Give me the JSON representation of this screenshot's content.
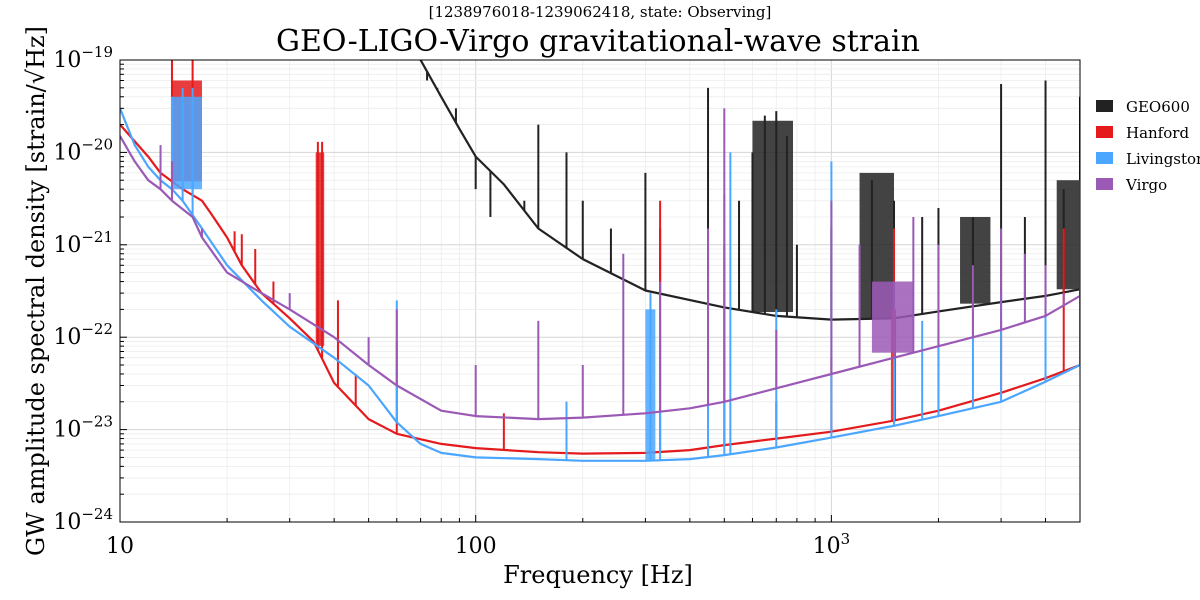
{
  "chart_data": {
    "type": "line",
    "subtitle": "[1238976018-1239062418, state: Observing]",
    "title": "GEO-LIGO-Virgo gravitational-wave strain",
    "xlabel": "Frequency [Hz]",
    "ylabel": "GW amplitude spectral density [strain/√Hz]",
    "xscale": "log",
    "yscale": "log",
    "xlim": [
      10,
      5000
    ],
    "ylim": [
      1e-24,
      1e-19
    ],
    "grid": true,
    "legend_position": "right",
    "x_tick_labels": [
      {
        "value": 10,
        "base": "10",
        "exp": ""
      },
      {
        "value": 100,
        "base": "100",
        "exp": ""
      },
      {
        "value": 1000,
        "base": "10",
        "exp": "3"
      }
    ],
    "y_tick_labels": [
      {
        "value": 1e-24,
        "base": "10",
        "exp": "−24"
      },
      {
        "value": 1e-23,
        "base": "10",
        "exp": "−23"
      },
      {
        "value": 1e-22,
        "base": "10",
        "exp": "−22"
      },
      {
        "value": 1e-21,
        "base": "10",
        "exp": "−21"
      },
      {
        "value": 1e-20,
        "base": "10",
        "exp": "−20"
      },
      {
        "value": 1e-19,
        "base": "10",
        "exp": "−19"
      }
    ],
    "series": [
      {
        "name": "GEO600",
        "color": "#222222",
        "baseline": [
          [
            70,
            1e-19
          ],
          [
            80,
            4e-20
          ],
          [
            90,
            1.8e-20
          ],
          [
            100,
            9e-21
          ],
          [
            120,
            4.5e-21
          ],
          [
            150,
            1.5e-21
          ],
          [
            200,
            7e-22
          ],
          [
            300,
            3.2e-22
          ],
          [
            500,
            2.1e-22
          ],
          [
            700,
            1.7e-22
          ],
          [
            1000,
            1.55e-22
          ],
          [
            1500,
            1.6e-22
          ],
          [
            2000,
            1.9e-22
          ],
          [
            3000,
            2.4e-22
          ],
          [
            4000,
            2.8e-22
          ],
          [
            5000,
            3.3e-22
          ]
        ],
        "peaks": [
          [
            73,
            6e-20
          ],
          [
            78,
            5e-20
          ],
          [
            88,
            3e-20
          ],
          [
            100,
            4e-21
          ],
          [
            110,
            2e-21
          ],
          [
            137,
            3e-21
          ],
          [
            150,
            2e-20
          ],
          [
            180,
            1e-20
          ],
          [
            200,
            3e-21
          ],
          [
            240,
            1.5e-21
          ],
          [
            300,
            6e-21
          ],
          [
            330,
            1.5e-21
          ],
          [
            450,
            5e-20
          ],
          [
            550,
            3e-21
          ],
          [
            600,
            1e-20
          ],
          [
            650,
            2.5e-20
          ],
          [
            700,
            2.8e-20
          ],
          [
            750,
            1.5e-20
          ],
          [
            800,
            1e-21
          ],
          [
            1000,
            1.5e-21
          ],
          [
            1300,
            5e-21
          ],
          [
            1500,
            3e-21
          ],
          [
            1800,
            2e-21
          ],
          [
            2000,
            2.5e-21
          ],
          [
            2500,
            2e-21
          ],
          [
            3000,
            5.5e-20
          ],
          [
            3500,
            2e-21
          ],
          [
            4000,
            6e-20
          ],
          [
            4500,
            4e-21
          ],
          [
            5000,
            4e-20
          ]
        ],
        "bands": [
          [
            600,
            780,
            2.2e-20
          ],
          [
            1200,
            1500,
            6e-21
          ],
          [
            2300,
            2800,
            2e-21
          ],
          [
            4300,
            5000,
            5e-21
          ]
        ]
      },
      {
        "name": "Hanford",
        "color": "#e41a1c",
        "baseline": [
          [
            10,
            2e-20
          ],
          [
            12,
            9e-21
          ],
          [
            13,
            6e-21
          ],
          [
            15,
            4e-21
          ],
          [
            17,
            3e-21
          ],
          [
            18,
            2.2e-21
          ],
          [
            20,
            1.2e-21
          ],
          [
            22,
            6e-22
          ],
          [
            25,
            3e-22
          ],
          [
            30,
            1.6e-22
          ],
          [
            35,
            9e-23
          ],
          [
            40,
            3.2e-23
          ],
          [
            50,
            1.3e-23
          ],
          [
            60,
            9e-24
          ],
          [
            80,
            7e-24
          ],
          [
            100,
            6.3e-24
          ],
          [
            150,
            5.7e-24
          ],
          [
            200,
            5.5e-24
          ],
          [
            300,
            5.6e-24
          ],
          [
            400,
            6e-24
          ],
          [
            500,
            6.8e-24
          ],
          [
            700,
            8e-24
          ],
          [
            1000,
            9.5e-24
          ],
          [
            1500,
            1.25e-23
          ],
          [
            2000,
            1.6e-23
          ],
          [
            3000,
            2.5e-23
          ],
          [
            4000,
            3.6e-23
          ],
          [
            5000,
            5e-23
          ]
        ],
        "peaks": [
          [
            14,
            1e-19
          ],
          [
            16,
            1e-19
          ],
          [
            21,
            1.4e-21
          ],
          [
            22,
            1.3e-21
          ],
          [
            24,
            9e-22
          ],
          [
            27,
            4e-22
          ],
          [
            36,
            1.3e-20
          ],
          [
            37,
            1.3e-20
          ],
          [
            41,
            2.5e-22
          ],
          [
            46,
            4e-23
          ],
          [
            60,
            9e-23
          ],
          [
            120,
            1.5e-23
          ],
          [
            180,
            2e-23
          ],
          [
            330,
            3e-21
          ],
          [
            500,
            1e-21
          ],
          [
            700,
            2e-23
          ],
          [
            1000,
            6e-23
          ],
          [
            1500,
            1.5e-21
          ],
          [
            2000,
            1.5e-22
          ],
          [
            3000,
            1.5e-22
          ],
          [
            4500,
            1.5e-21
          ],
          [
            5000,
            2e-21
          ]
        ],
        "bands": [
          [
            14,
            17,
            6e-20
          ],
          [
            35.5,
            37.5,
            1e-20
          ],
          [
            1470,
            1520,
            2e-22
          ]
        ]
      },
      {
        "name": "Livingston",
        "color": "#4ba6ff",
        "baseline": [
          [
            10,
            3e-20
          ],
          [
            11,
            1.2e-20
          ],
          [
            12,
            7e-21
          ],
          [
            13,
            5e-21
          ],
          [
            14,
            4e-21
          ],
          [
            15,
            3e-21
          ],
          [
            17,
            1.5e-21
          ],
          [
            20,
            6e-22
          ],
          [
            25,
            2.5e-22
          ],
          [
            30,
            1.3e-22
          ],
          [
            40,
            6e-23
          ],
          [
            50,
            3e-23
          ],
          [
            60,
            1.2e-23
          ],
          [
            70,
            7e-24
          ],
          [
            80,
            5.6e-24
          ],
          [
            100,
            5e-24
          ],
          [
            150,
            4.8e-24
          ],
          [
            200,
            4.6e-24
          ],
          [
            300,
            4.6e-24
          ],
          [
            400,
            4.8e-24
          ],
          [
            500,
            5.3e-24
          ],
          [
            700,
            6.4e-24
          ],
          [
            1000,
            8.2e-24
          ],
          [
            1500,
            1.1e-23
          ],
          [
            2000,
            1.4e-23
          ],
          [
            3000,
            2e-23
          ],
          [
            4000,
            3.3e-23
          ],
          [
            5000,
            5e-23
          ]
        ],
        "peaks": [
          [
            14,
            4e-20
          ],
          [
            15,
            5e-20
          ],
          [
            16,
            5e-20
          ],
          [
            60,
            2.5e-22
          ],
          [
            180,
            2e-23
          ],
          [
            310,
            3e-22
          ],
          [
            330,
            1.5e-22
          ],
          [
            450,
            3e-22
          ],
          [
            500,
            3.5e-21
          ],
          [
            520,
            1e-20
          ],
          [
            700,
            2e-22
          ],
          [
            1000,
            8e-21
          ],
          [
            1500,
            1e-22
          ],
          [
            1800,
            1.5e-22
          ],
          [
            2000,
            1e-22
          ],
          [
            2500,
            2e-22
          ],
          [
            3000,
            3e-22
          ],
          [
            4000,
            2.5e-22
          ],
          [
            5000,
            6e-22
          ]
        ],
        "bands": [
          [
            14,
            17,
            4e-20
          ],
          [
            300,
            320,
            2e-22
          ]
        ]
      },
      {
        "name": "Virgo",
        "color": "#9b59b6",
        "baseline": [
          [
            10,
            1.5e-20
          ],
          [
            11,
            8e-21
          ],
          [
            12,
            5e-21
          ],
          [
            13,
            4e-21
          ],
          [
            14,
            3e-21
          ],
          [
            16,
            2e-21
          ],
          [
            17,
            1.2e-21
          ],
          [
            20,
            5e-22
          ],
          [
            25,
            3e-22
          ],
          [
            30,
            2e-22
          ],
          [
            40,
            1e-22
          ],
          [
            50,
            5e-23
          ],
          [
            60,
            3e-23
          ],
          [
            80,
            1.6e-23
          ],
          [
            100,
            1.4e-23
          ],
          [
            150,
            1.3e-23
          ],
          [
            200,
            1.35e-23
          ],
          [
            300,
            1.5e-23
          ],
          [
            400,
            1.7e-23
          ],
          [
            500,
            2e-23
          ],
          [
            700,
            2.8e-23
          ],
          [
            1000,
            4e-23
          ],
          [
            1500,
            6e-23
          ],
          [
            2000,
            8e-23
          ],
          [
            3000,
            1.2e-22
          ],
          [
            4000,
            1.7e-22
          ],
          [
            5000,
            2.8e-22
          ]
        ],
        "peaks": [
          [
            13,
            1.2e-20
          ],
          [
            14,
            8e-21
          ],
          [
            17,
            1.5e-21
          ],
          [
            25,
            3e-22
          ],
          [
            30,
            3e-22
          ],
          [
            50,
            1e-22
          ],
          [
            60,
            2e-22
          ],
          [
            100,
            5e-23
          ],
          [
            150,
            1.5e-22
          ],
          [
            200,
            5e-23
          ],
          [
            260,
            8e-22
          ],
          [
            330,
            4e-22
          ],
          [
            450,
            1.5e-21
          ],
          [
            500,
            3e-20
          ],
          [
            700,
            1.2e-22
          ],
          [
            1000,
            3e-21
          ],
          [
            1200,
            1e-21
          ],
          [
            1500,
            4e-22
          ],
          [
            1700,
            2e-21
          ],
          [
            2000,
            1e-21
          ],
          [
            2500,
            6e-22
          ],
          [
            3000,
            1.5e-21
          ],
          [
            3500,
            8e-22
          ],
          [
            4000,
            6e-22
          ],
          [
            4500,
            3e-22
          ],
          [
            5000,
            5e-21
          ]
        ],
        "bands": [
          [
            1300,
            1700,
            4e-22
          ]
        ]
      }
    ]
  }
}
